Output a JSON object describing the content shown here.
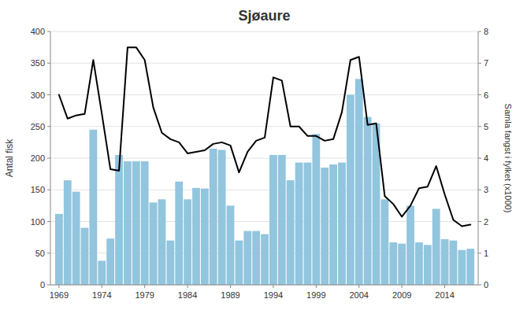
{
  "chart_data": {
    "type": "bar",
    "title": "Sjøaure",
    "ylabel": "Antal fisk",
    "y2label": "Samla fangst i fylket  (x1000)",
    "x": [
      1969,
      1970,
      1971,
      1972,
      1973,
      1974,
      1975,
      1976,
      1977,
      1978,
      1979,
      1980,
      1981,
      1982,
      1983,
      1984,
      1985,
      1986,
      1987,
      1988,
      1989,
      1990,
      1991,
      1992,
      1993,
      1994,
      1995,
      1996,
      1997,
      1998,
      1999,
      2000,
      2001,
      2002,
      2003,
      2004,
      2005,
      2006,
      2007,
      2008,
      2009,
      2010,
      2011,
      2012,
      2013,
      2014,
      2015,
      2016,
      2017
    ],
    "series": [
      {
        "type": "bar",
        "color": "#92C5DE",
        "values": [
          112,
          165,
          147,
          90,
          245,
          38,
          73,
          205,
          195,
          195,
          195,
          130,
          135,
          70,
          163,
          135,
          153,
          152,
          215,
          213,
          125,
          70,
          85,
          85,
          80,
          205,
          205,
          165,
          193,
          193,
          238,
          185,
          190,
          193,
          300,
          325,
          265,
          255,
          135,
          67,
          65,
          125,
          67,
          63,
          120,
          72,
          70,
          55,
          57
        ]
      },
      {
        "type": "line",
        "axis": "y2",
        "color": "#000000",
        "values": [
          6.0,
          5.25,
          5.35,
          5.4,
          7.1,
          5.4,
          3.65,
          3.6,
          7.5,
          7.5,
          7.1,
          5.6,
          4.8,
          4.6,
          4.5,
          4.15,
          4.2,
          4.25,
          4.45,
          4.5,
          4.4,
          3.55,
          4.2,
          4.55,
          4.65,
          6.55,
          6.45,
          5.0,
          5.0,
          4.7,
          4.7,
          4.55,
          4.6,
          5.45,
          7.1,
          7.2,
          5.05,
          5.1,
          2.8,
          2.55,
          2.15,
          2.5,
          3.05,
          3.1,
          3.75,
          2.85,
          2.05,
          1.85,
          1.9
        ]
      }
    ],
    "xlim": [
      1968.0,
      2017.9
    ],
    "xticks": [
      1969,
      1974,
      1979,
      1984,
      1989,
      1994,
      1999,
      2004,
      2009,
      2014
    ],
    "ylim": [
      0,
      400
    ],
    "yticks": [
      0,
      50,
      100,
      150,
      200,
      250,
      300,
      350,
      400
    ],
    "y2lim": [
      0,
      8
    ],
    "y2ticks": [
      0,
      1,
      2,
      3,
      4,
      5,
      6,
      7,
      8
    ],
    "grid": true
  }
}
